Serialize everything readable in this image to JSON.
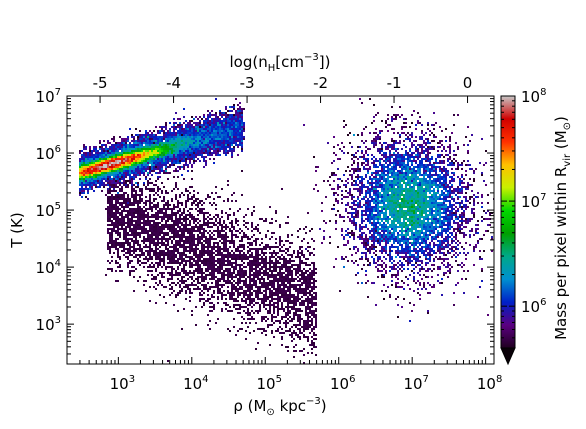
{
  "chart_data": {
    "type": "heatmap",
    "title": "",
    "xlabel_parts": {
      "pre": "ρ (M",
      "sub": "⊙",
      "post": " kpc",
      "sup": "−3",
      "close": ")"
    },
    "ylabel": "T (K)",
    "top_xlabel_parts": {
      "pre": "log(n",
      "sub": "H",
      "mid": "[cm",
      "sup": "−3",
      "close": "])"
    },
    "colorbar_label_parts": {
      "pre": "Mass per pixel within R",
      "sub": "vir",
      "mid": " (M",
      "sub2": "⊙",
      "close": ")"
    },
    "x_scale": "log",
    "y_scale": "log",
    "colorbar_scale": "log",
    "xlim": [
      200,
      130000000
    ],
    "ylim": [
      200,
      10000000
    ],
    "top_xlim": [
      -5.45,
      0.36
    ],
    "colorbar_lim": [
      400000,
      100000000
    ],
    "x_ticks": [
      {
        "base": "10",
        "exp": "3",
        "value": 1000
      },
      {
        "base": "10",
        "exp": "4",
        "value": 10000
      },
      {
        "base": "10",
        "exp": "5",
        "value": 100000
      },
      {
        "base": "10",
        "exp": "6",
        "value": 1000000
      },
      {
        "base": "10",
        "exp": "7",
        "value": 10000000
      },
      {
        "base": "10",
        "exp": "8",
        "value": 100000000
      }
    ],
    "y_ticks": [
      {
        "base": "10",
        "exp": "3",
        "value": 1000
      },
      {
        "base": "10",
        "exp": "4",
        "value": 10000
      },
      {
        "base": "10",
        "exp": "5",
        "value": 100000
      },
      {
        "base": "10",
        "exp": "6",
        "value": 1000000
      },
      {
        "base": "10",
        "exp": "7",
        "value": 10000000
      }
    ],
    "top_ticks": [
      {
        "label": "-5",
        "value": -5
      },
      {
        "label": "-4",
        "value": -4
      },
      {
        "label": "-3",
        "value": -3
      },
      {
        "label": "-2",
        "value": -2
      },
      {
        "label": "-1",
        "value": -1
      },
      {
        "label": "0",
        "value": 0
      }
    ],
    "colorbar_ticks": [
      {
        "base": "10",
        "exp": "6",
        "value": 1000000
      },
      {
        "base": "10",
        "exp": "7",
        "value": 10000000
      },
      {
        "base": "10",
        "exp": "8",
        "value": 100000000
      }
    ],
    "colormap": "nipy_spectral",
    "colormap_stops": [
      "#200020",
      "#5a0080",
      "#0020c8",
      "#0090d0",
      "#00a888",
      "#00a000",
      "#00d800",
      "#c8f000",
      "#ffc000",
      "#ff3000",
      "#d00000",
      "#c8c8c8"
    ],
    "colorbar_extend": "min",
    "regions": [
      {
        "name": "hot-diffuse-ridge",
        "x_range": [
          300,
          50000
        ],
        "t_range": [
          300000,
          4000000
        ],
        "peak_mass": 60000000
      },
      {
        "name": "dense-cool-blob",
        "x_range": [
          500000,
          80000000
        ],
        "t_range": [
          800,
          1200000
        ],
        "peak_mass": 2500000
      },
      {
        "name": "cooling-tail",
        "x_range": [
          700,
          500000
        ],
        "t_range": [
          2000,
          300000
        ],
        "peak_mass": 700000
      }
    ],
    "grid": false,
    "legend": "none"
  }
}
